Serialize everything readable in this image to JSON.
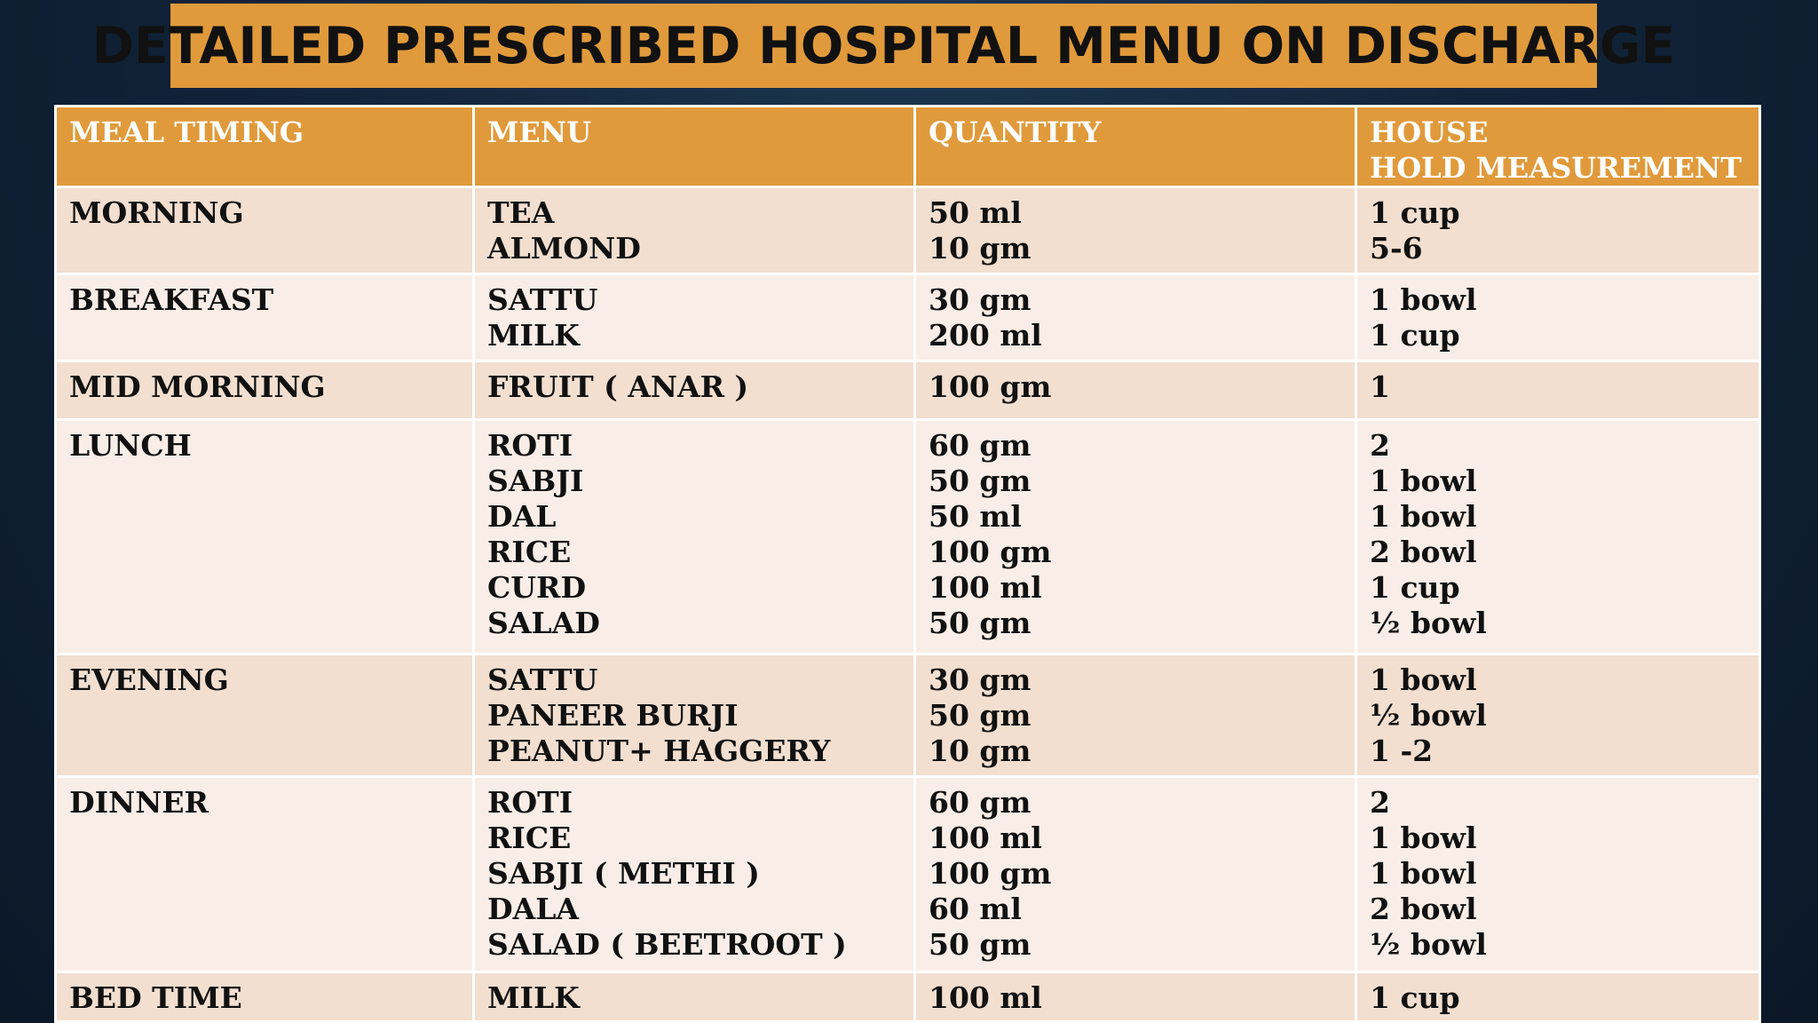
{
  "title": "DETAILED PRESCRIBED HOSPITAL MENU ON DISCHARGE",
  "table": {
    "headers": {
      "meal_timing": "MEAL TIMING",
      "menu": "MENU",
      "quantity": "QUANTITY",
      "household_line1": "HOUSE",
      "household_line2": "HOLD MEASUREMENT"
    },
    "rows": [
      {
        "meal": "MORNING",
        "items": [
          "TEA",
          "ALMOND"
        ],
        "quantities": [
          "50 ml",
          "10 gm"
        ],
        "measures": [
          "1 cup",
          "5-6"
        ]
      },
      {
        "meal": "BREAKFAST",
        "items": [
          "SATTU",
          "MILK"
        ],
        "quantities": [
          "30 gm",
          "200 ml"
        ],
        "measures": [
          "1 bowl",
          "1 cup"
        ]
      },
      {
        "meal": "MID MORNING",
        "items": [
          "FRUIT ( ANAR )"
        ],
        "quantities": [
          "100 gm"
        ],
        "measures": [
          "1"
        ]
      },
      {
        "meal": "LUNCH",
        "items": [
          "ROTI",
          "SABJI",
          "DAL",
          "RICE",
          "CURD",
          "SALAD"
        ],
        "quantities": [
          "60 gm",
          "50 gm",
          "50 ml",
          "100 gm",
          "100 ml",
          "50 gm"
        ],
        "measures": [
          "2",
          "1 bowl",
          "1 bowl",
          "2 bowl",
          "1 cup",
          "½ bowl"
        ]
      },
      {
        "meal": "EVENING",
        "items": [
          "SATTU",
          "PANEER BURJI",
          "PEANUT+ HAGGERY"
        ],
        "quantities": [
          "30 gm",
          "50 gm",
          "10 gm"
        ],
        "measures": [
          "1 bowl",
          "½ bowl",
          "1 -2"
        ]
      },
      {
        "meal": "DINNER",
        "items": [
          "ROTI",
          "RICE",
          "SABJI ( METHI )",
          "DALA",
          "SALAD ( BEETROOT )"
        ],
        "quantities": [
          "60 gm",
          "100 ml",
          "100 gm",
          "60 ml",
          "50 gm"
        ],
        "measures": [
          "2",
          "1 bowl",
          "1 bowl",
          "2 bowl",
          "½  bowl"
        ]
      },
      {
        "meal": "BED TIME",
        "items": [
          "MILK"
        ],
        "quantities": [
          "100 ml"
        ],
        "measures": [
          "1 cup"
        ]
      }
    ]
  }
}
